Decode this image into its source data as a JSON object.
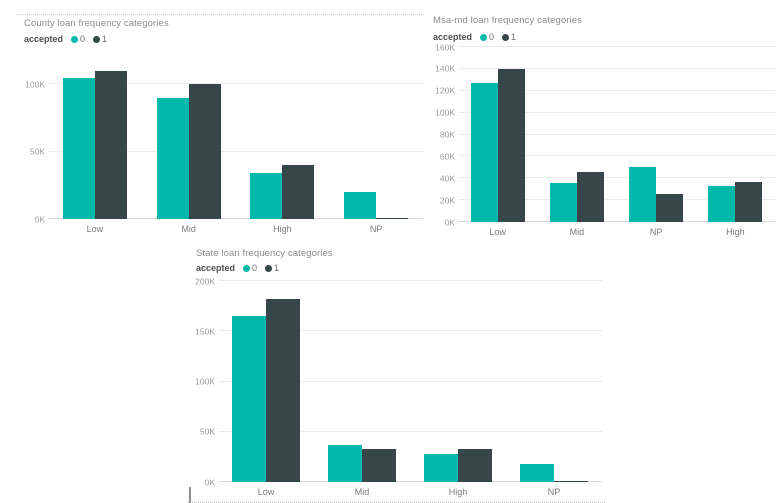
{
  "app": {
    "background": "#ffffff"
  },
  "colors": {
    "accent_teal": "#01B8AA",
    "dark_slate": "#374649",
    "title_text": "#8c8c8c",
    "tick_text": "#9b9b9b",
    "category_text": "#7a7a7a",
    "gridline": "#ececec",
    "axis_line": "#d8d8d8",
    "dotted_border": "#c3c3c3"
  },
  "chart_data": [
    {
      "id": "county-loan-frequency",
      "type": "bar",
      "title": "County loan frequency categories",
      "legend": {
        "title": "accepted",
        "position": "top-left",
        "items": [
          {
            "label": "0",
            "color": "#01B8AA"
          },
          {
            "label": "1",
            "color": "#374649"
          }
        ]
      },
      "categories": [
        "Low",
        "Mid",
        "High",
        "NP"
      ],
      "series": [
        {
          "name": "0",
          "color": "#01B8AA",
          "values": [
            105,
            90,
            34,
            20
          ]
        },
        {
          "name": "1",
          "color": "#374649",
          "values": [
            110,
            100,
            40,
            1
          ]
        }
      ],
      "unit": "thousands",
      "xlabel": "",
      "ylabel": "",
      "ylim": [
        0,
        115
      ],
      "grid": true,
      "yticks": [
        {
          "value": 0,
          "label": "0K"
        },
        {
          "value": 50,
          "label": "50K"
        },
        {
          "value": 100,
          "label": "100K"
        }
      ]
    },
    {
      "id": "msa-md-loan-frequency",
      "type": "bar",
      "title": "Msa-md loan frequency categories",
      "legend": {
        "title": "accepted",
        "position": "top-left",
        "items": [
          {
            "label": "0",
            "color": "#01B8AA"
          },
          {
            "label": "1",
            "color": "#374649"
          }
        ]
      },
      "categories": [
        "Low",
        "Mid",
        "NP",
        "High"
      ],
      "series": [
        {
          "name": "0",
          "color": "#01B8AA",
          "values": [
            127,
            36,
            50,
            33
          ]
        },
        {
          "name": "1",
          "color": "#374649",
          "values": [
            140,
            46,
            26,
            37
          ]
        }
      ],
      "unit": "thousands",
      "xlabel": "",
      "ylabel": "",
      "ylim": [
        0,
        160
      ],
      "grid": true,
      "yticks": [
        {
          "value": 0,
          "label": "0K"
        },
        {
          "value": 20,
          "label": "20K"
        },
        {
          "value": 40,
          "label": "40K"
        },
        {
          "value": 60,
          "label": "60K"
        },
        {
          "value": 80,
          "label": "80K"
        },
        {
          "value": 100,
          "label": "100K"
        },
        {
          "value": 120,
          "label": "120K"
        },
        {
          "value": 140,
          "label": "140K"
        },
        {
          "value": 160,
          "label": "160K"
        }
      ]
    },
    {
      "id": "state-loan-frequency",
      "type": "bar",
      "title": "State loan frequency categories",
      "legend": {
        "title": "accepted",
        "position": "top-left",
        "items": [
          {
            "label": "0",
            "color": "#01B8AA"
          },
          {
            "label": "1",
            "color": "#374649"
          }
        ]
      },
      "categories": [
        "Low",
        "Mid",
        "High",
        "NP"
      ],
      "series": [
        {
          "name": "0",
          "color": "#01B8AA",
          "values": [
            165,
            37,
            28,
            18
          ]
        },
        {
          "name": "1",
          "color": "#374649",
          "values": [
            182,
            33,
            33,
            1
          ]
        }
      ],
      "unit": "thousands",
      "xlabel": "",
      "ylabel": "",
      "ylim": [
        0,
        200
      ],
      "grid": true,
      "yticks": [
        {
          "value": 0,
          "label": "0K"
        },
        {
          "value": 50,
          "label": "50K"
        },
        {
          "value": 100,
          "label": "100K"
        },
        {
          "value": 150,
          "label": "150K"
        },
        {
          "value": 200,
          "label": "200K"
        }
      ]
    }
  ]
}
